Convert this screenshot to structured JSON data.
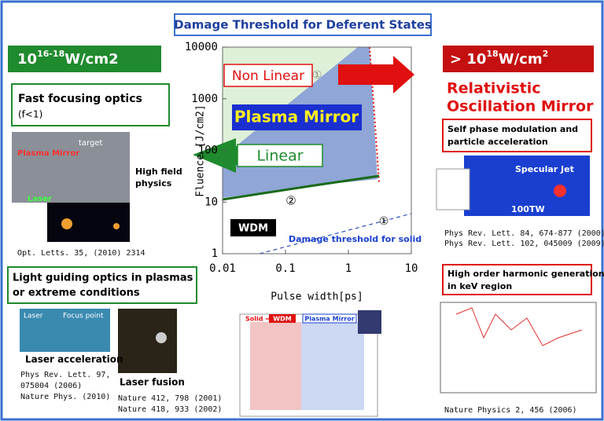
{
  "title": "Damage Threshold for Deferent States",
  "left": {
    "badge": {
      "base": "10",
      "sup": "16-18",
      "unit": "W/cm2"
    },
    "fast_focusing": {
      "title": "Fast focusing optics",
      "subtitle": "(f<1)",
      "image_labels": [
        "Plasma Mirror",
        "target",
        "Laser",
        "High field",
        "physics"
      ],
      "reference": "Opt. Letts. 35, (2010) 2314"
    },
    "light_guiding": {
      "title": [
        "Light guiding optics in plasmas",
        "or extreme conditions"
      ],
      "image_labels": [
        "Laser",
        "Focus point"
      ],
      "caption": "Laser acceleration",
      "references": [
        "Phys Rev. Lett. 97,",
        "075004 (2006)",
        "Nature Phys. (2010)"
      ],
      "fusion_caption": "Laser fusion",
      "fusion_references": [
        "Nature 412, 798 (2001)",
        "Nature 418, 933 (2002)"
      ]
    }
  },
  "right": {
    "badge": {
      "prefix": "> 10",
      "sup": "18",
      "unit": "W/cm",
      "unit_sup": "2"
    },
    "heading": [
      "Relativistic",
      "Oscillation  Mirror"
    ],
    "self_phase": {
      "title": [
        "Self phase modulation and",
        "particle acceleration"
      ],
      "image_labels": [
        "Specular Jet",
        "100TW"
      ],
      "references": [
        "Phys Rev. Lett. 84, 674-877 (2000)",
        "Phys Rev. Lett. 102, 045009 (2009)"
      ]
    },
    "harmonic": {
      "title": [
        "High order harmonic generation",
        "in keV region"
      ],
      "reference": "Nature Physics 2, 456 (2006)"
    }
  },
  "plot": {
    "xlabel": "Pulse width[ps]",
    "ylabel": "Fluence [J/cm2]",
    "xscale": "log",
    "yscale": "log",
    "xlim": [
      0.01,
      10
    ],
    "ylim": [
      1,
      10000
    ],
    "xticks": [
      0.01,
      0.1,
      1,
      10
    ],
    "yticks": [
      1,
      10,
      100,
      1000,
      10000
    ],
    "labels": {
      "non_linear": "Non Linear",
      "plasma_mirror": "Plasma Mirror",
      "linear": "Linear",
      "wdm": "WDM",
      "damage": "Damage threshold for solid",
      "circle_top": "①",
      "circle_mid": "②",
      "circle_low": "①"
    }
  },
  "bottom_figure": {
    "solid": "Solid ⇒",
    "wdm": "WDM",
    "plasma_mirror": "Plasma  Mirror"
  }
}
